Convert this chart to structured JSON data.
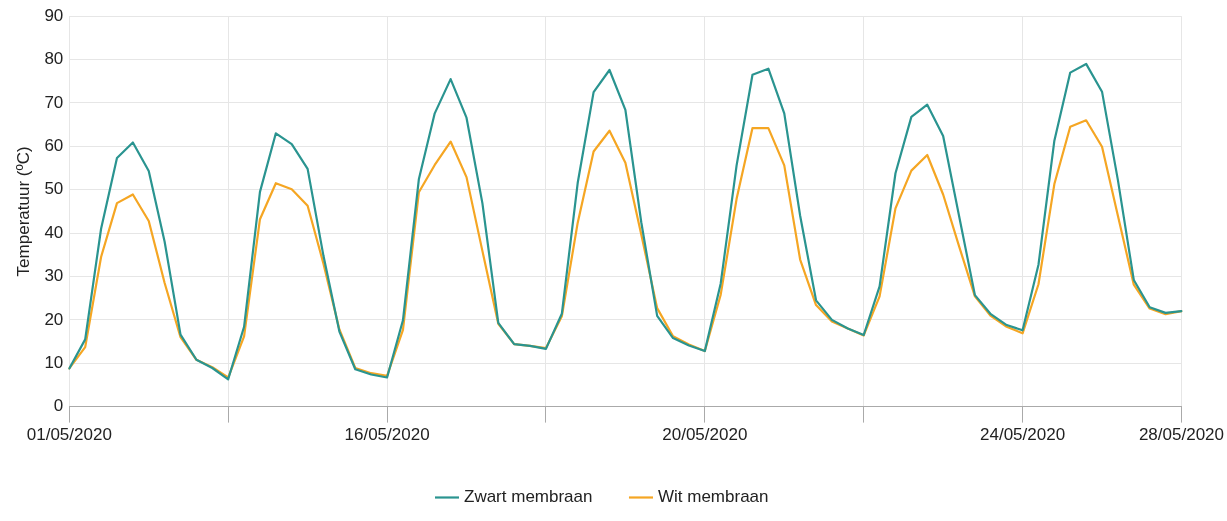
{
  "chart_data": {
    "type": "line",
    "ylabel": "Temperatuur (ºC)",
    "categories": [
      "01/05/2020",
      null,
      null,
      null,
      null,
      null,
      null,
      null,
      null,
      null,
      null,
      null,
      null,
      null,
      null,
      null,
      null,
      null,
      null,
      null,
      "16/05/2020",
      null,
      null,
      null,
      null,
      null,
      null,
      null,
      null,
      null,
      null,
      null,
      null,
      null,
      null,
      null,
      null,
      null,
      null,
      null,
      "20/05/2020",
      null,
      null,
      null,
      null,
      null,
      null,
      null,
      null,
      null,
      null,
      null,
      null,
      null,
      null,
      null,
      null,
      null,
      null,
      null,
      "24/05/2020",
      null,
      null,
      null,
      null,
      null,
      null,
      null,
      null,
      null,
      "28/05/2020"
    ],
    "ylim": [
      0,
      90
    ],
    "yticks": [
      0,
      10,
      20,
      30,
      40,
      50,
      60,
      70,
      80,
      90
    ],
    "grid": true,
    "legend": "bottom",
    "series": [
      {
        "name": "Zwart membraan",
        "color": "#2a9490",
        "values": [
          8.8,
          15.5,
          41,
          57.3,
          60.9,
          54.3,
          38,
          16.6,
          10.8,
          8.9,
          6.3,
          18.4,
          49.5,
          63,
          60.5,
          54.8,
          34.7,
          17.3,
          8.6,
          7.4,
          6.7,
          19.9,
          52.4,
          67.6,
          75.5,
          66.6,
          46.9,
          19.3,
          14.4,
          14,
          13.3,
          21.4,
          51.6,
          72.5,
          77.6,
          68.4,
          42.5,
          20.9,
          15.8,
          14.1,
          12.8,
          28.4,
          55.6,
          76.5,
          77.9,
          67.6,
          44,
          24.5,
          20,
          18,
          16.5,
          27.7,
          53.8,
          66.8,
          69.6,
          62.4,
          44,
          25.7,
          21.3,
          18.8,
          17.6,
          32.7,
          61.3,
          77,
          79,
          72.6,
          52.2,
          29.2,
          22.9,
          21.6,
          22
        ]
      },
      {
        "name": "Wit membraan",
        "color": "#f5a623",
        "values": [
          8.8,
          13.7,
          34.5,
          46.9,
          48.9,
          42.8,
          28.5,
          16,
          10.8,
          9.1,
          6.7,
          16.2,
          43.2,
          51.5,
          50.1,
          46.3,
          32.9,
          17.8,
          8.9,
          7.7,
          7.1,
          17.7,
          49.4,
          55.7,
          61.1,
          52.9,
          35.9,
          19.1,
          14.4,
          14,
          13.5,
          20.8,
          42.4,
          58.8,
          63.6,
          56.2,
          39.7,
          22.7,
          16.2,
          14.3,
          12.8,
          25.8,
          47.9,
          64.2,
          64.2,
          55.6,
          33.9,
          23.4,
          19.6,
          18,
          16.4,
          25.4,
          45.7,
          54.4,
          58,
          48.9,
          37,
          25.4,
          20.9,
          18.4,
          16.9,
          28.2,
          51.3,
          64.5,
          66,
          59.9,
          44,
          28.1,
          22.6,
          21.3,
          22
        ]
      }
    ]
  }
}
